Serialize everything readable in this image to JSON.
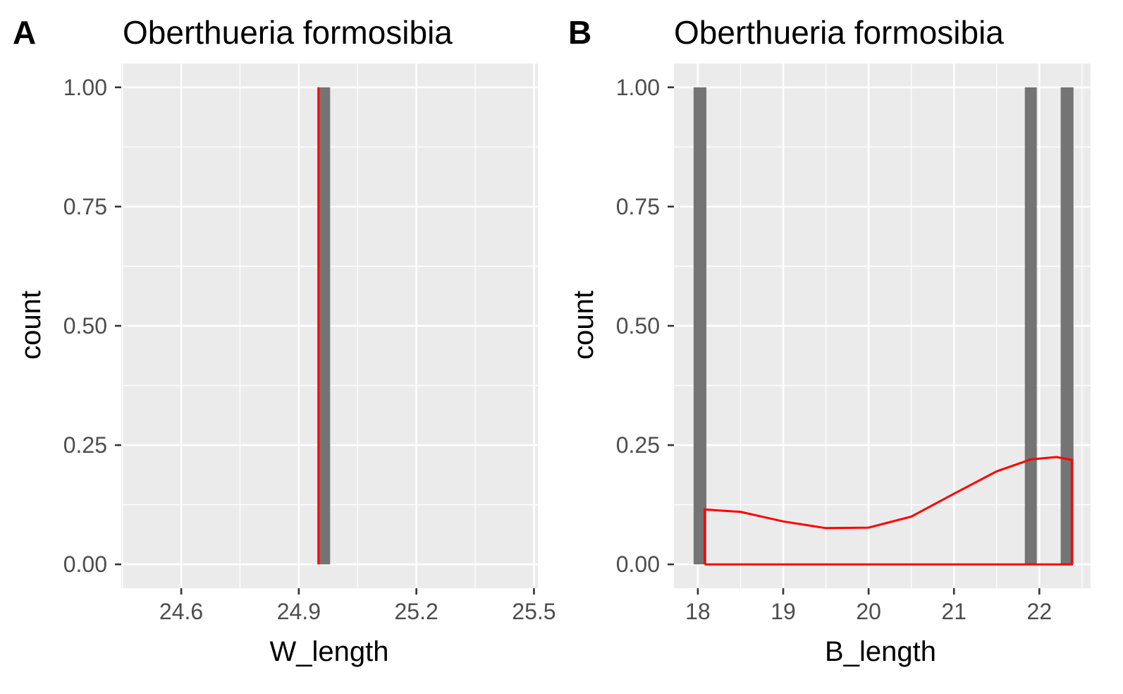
{
  "colors": {
    "panel_background": "#ebebeb",
    "grid": "#ffffff",
    "bar": "#747474",
    "density": "#ff0000",
    "tick_text": "#4d4d4d"
  },
  "chart_data": [
    {
      "panel_label": "A",
      "type": "bar",
      "title": "Oberthueria formosibia",
      "xlabel": "W_length",
      "ylabel": "count",
      "xlim": [
        24.447,
        25.51
      ],
      "ylim": [
        -0.05,
        1.05
      ],
      "x_ticks": [
        24.6,
        24.9,
        25.2,
        25.5
      ],
      "x_tick_labels": [
        "24.6",
        "24.9",
        "25.2",
        "25.5"
      ],
      "y_ticks": [
        0,
        0.25,
        0.5,
        0.75,
        1
      ],
      "y_tick_labels": [
        "0.00",
        "0.25",
        "0.50",
        "0.75",
        "1.00"
      ],
      "grid": true,
      "bars": [
        {
          "xmin": 24.95,
          "xmax": 24.98,
          "count": 1
        }
      ],
      "density": {
        "color": "#ff0000",
        "points": [
          [
            24.95,
            0
          ],
          [
            24.95,
            1
          ]
        ]
      }
    },
    {
      "panel_label": "B",
      "type": "bar",
      "title": "Oberthueria formosibia",
      "xlabel": "B_length",
      "ylabel": "count",
      "xlim": [
        17.72,
        22.6
      ],
      "ylim": [
        -0.05,
        1.05
      ],
      "x_ticks": [
        18,
        19,
        20,
        21,
        22
      ],
      "x_tick_labels": [
        "18",
        "19",
        "20",
        "21",
        "22"
      ],
      "y_ticks": [
        0,
        0.25,
        0.5,
        0.75,
        1
      ],
      "y_tick_labels": [
        "0.00",
        "0.25",
        "0.50",
        "0.75",
        "1.00"
      ],
      "grid": true,
      "bars": [
        {
          "xmin": 17.95,
          "xmax": 18.1,
          "count": 1
        },
        {
          "xmin": 21.83,
          "xmax": 21.97,
          "count": 1
        },
        {
          "xmin": 22.25,
          "xmax": 22.4,
          "count": 1
        }
      ],
      "density": {
        "color": "#ff0000",
        "points": [
          [
            18.08,
            0
          ],
          [
            18.08,
            0.115
          ],
          [
            18.5,
            0.11
          ],
          [
            19.0,
            0.09
          ],
          [
            19.5,
            0.076
          ],
          [
            20.0,
            0.077
          ],
          [
            20.5,
            0.1
          ],
          [
            21.0,
            0.148
          ],
          [
            21.5,
            0.195
          ],
          [
            21.9,
            0.22
          ],
          [
            22.2,
            0.225
          ],
          [
            22.38,
            0.219
          ],
          [
            22.38,
            0
          ],
          [
            18.08,
            0
          ]
        ]
      }
    }
  ]
}
